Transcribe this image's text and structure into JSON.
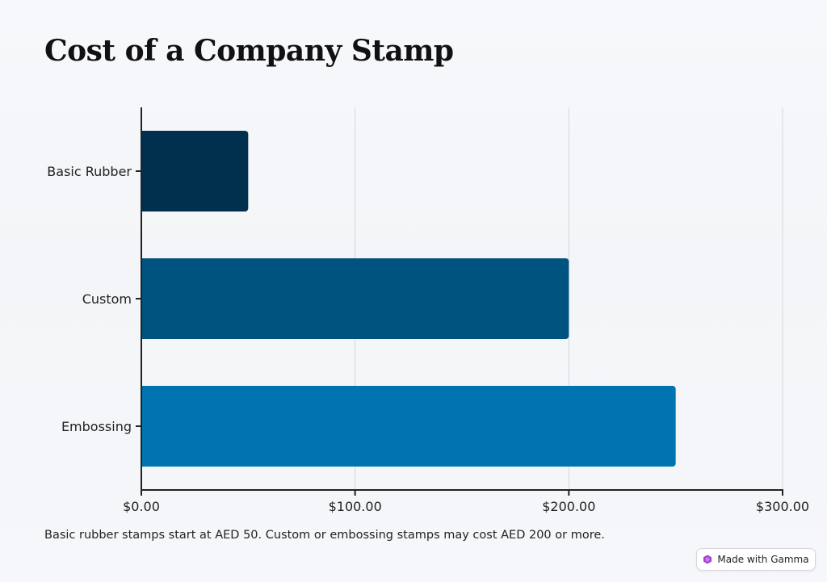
{
  "chart_data": {
    "type": "bar",
    "orientation": "horizontal",
    "title": "Cost of a Company Stamp",
    "categories": [
      "Basic Rubber",
      "Custom",
      "Embossing"
    ],
    "values": [
      50,
      200,
      250
    ],
    "x_ticks": [
      "$0.00",
      "$100.00",
      "$200.00",
      "$300.00"
    ],
    "x_tick_values": [
      0,
      100,
      200,
      300
    ],
    "xlim": [
      0,
      300
    ],
    "xlabel": "",
    "ylabel": "",
    "grid": "vertical",
    "legend": "none",
    "colors": [
      "#00304d",
      "#00537f",
      "#0074b0"
    ]
  },
  "caption": "Basic rubber stamps start at AED 50. Custom or embossing stamps may cost AED 200 or more.",
  "badge": {
    "label": "Made with Gamma",
    "icon": "gamma-logo-icon",
    "icon_color": "#a43fd6"
  }
}
